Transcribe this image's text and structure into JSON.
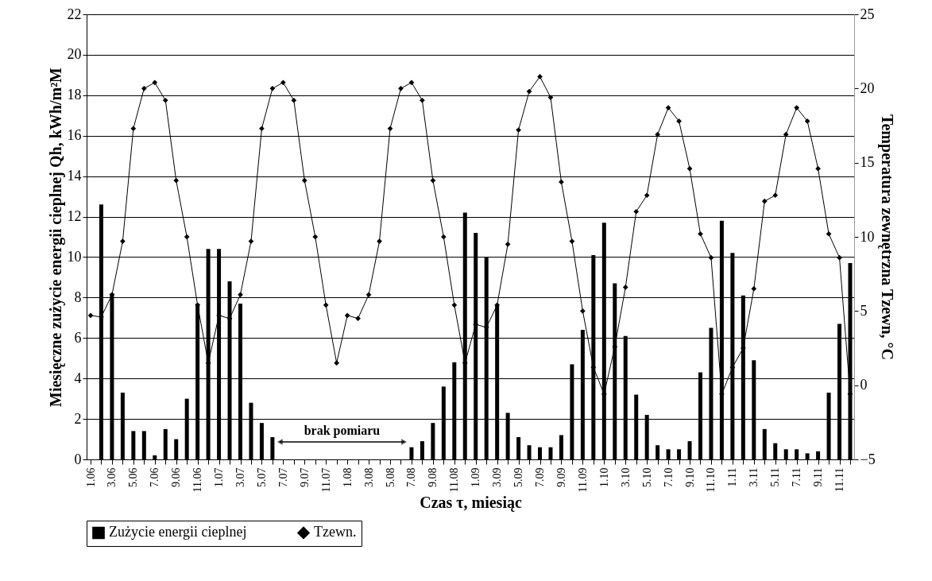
{
  "chart_data": {
    "type": "bar",
    "xlabel": "Czas τ, miesiąc",
    "ylabel": "Miesięczne zużycie energii cieplnej Qh, kWh/m²M",
    "y2label": "Temperatura zewnętrzna Tzewn, °C",
    "categories": [
      "1.06",
      null,
      "3.06",
      null,
      "5.06",
      null,
      "7.06",
      null,
      "9.06",
      null,
      "11.06",
      null,
      "1.07",
      null,
      "3.07",
      null,
      "5.07",
      null,
      "7.07",
      null,
      "9.07",
      null,
      "11.07",
      null,
      "1.08",
      null,
      "3.08",
      null,
      "5.08",
      null,
      "7.08",
      null,
      "9.08",
      null,
      "11.08",
      null,
      "1.09",
      null,
      "3.09",
      null,
      "5.09",
      null,
      "7.09",
      null,
      "9.09",
      null,
      "11.09",
      null,
      "1.10",
      null,
      "3.10",
      null,
      "5.10",
      null,
      "7.10",
      null,
      "9.10",
      null,
      "11.10",
      null,
      "1.11",
      null,
      "3.11",
      null,
      "5.11",
      null,
      "7.11",
      null,
      "9.11",
      null,
      "11.11",
      null
    ],
    "series": [
      {
        "name": "Zużycie energii cieplnej",
        "color": "#000000",
        "values": [
          null,
          12.6,
          8.2,
          3.3,
          1.4,
          1.4,
          0.2,
          1.5,
          1.0,
          3.0,
          7.7,
          10.4,
          10.4,
          8.8,
          7.7,
          2.8,
          1.8,
          1.1,
          null,
          null,
          null,
          null,
          null,
          null,
          null,
          null,
          null,
          null,
          null,
          null,
          0.6,
          0.9,
          1.8,
          3.6,
          4.8,
          12.2,
          11.2,
          10.0,
          7.6,
          2.3,
          1.1,
          0.7,
          0.6,
          0.6,
          1.2,
          4.7,
          6.4,
          10.1,
          11.7,
          8.7,
          6.1,
          3.2,
          2.2,
          0.7,
          0.5,
          0.5,
          0.9,
          4.3,
          6.5,
          11.8,
          10.2,
          8.1,
          4.9,
          1.5,
          0.8,
          0.5,
          0.5,
          0.3,
          0.4,
          3.3,
          6.7,
          9.7
        ]
      },
      {
        "name": "Tzewn.",
        "type": "line",
        "axis": "y2",
        "color": "#000000",
        "values": [
          4.7,
          4.6,
          6.1,
          9.7,
          17.3,
          20.0,
          20.4,
          19.2,
          13.8,
          10.0,
          5.4,
          1.5,
          4.7,
          4.5,
          6.1,
          9.7,
          17.3,
          20.0,
          20.4,
          19.2,
          13.8,
          10.0,
          5.4,
          1.5,
          4.7,
          4.5,
          6.1,
          9.7,
          17.3,
          20.0,
          20.4,
          19.2,
          13.8,
          10.0,
          5.4,
          1.5,
          4.1,
          3.9,
          5.4,
          9.5,
          17.2,
          19.8,
          20.8,
          19.4,
          13.7,
          9.7,
          5.0,
          1.2,
          -0.6,
          2.6,
          6.6,
          11.7,
          12.8,
          16.9,
          18.7,
          17.8,
          14.6,
          10.2,
          8.6,
          -0.6,
          1.2,
          2.5,
          6.5,
          12.4,
          12.8,
          16.9,
          18.7,
          17.8,
          14.6,
          10.2,
          8.6,
          -0.6
        ]
      }
    ],
    "ylim": [
      0,
      22
    ],
    "yticks": [
      0,
      2,
      4,
      6,
      8,
      10,
      12,
      14,
      16,
      18,
      20,
      22
    ],
    "y2lim": [
      -5,
      25
    ],
    "y2ticks": [
      -5,
      0,
      5,
      10,
      15,
      20,
      25
    ],
    "grid": "y",
    "legend": "bottom",
    "marker": "diamond",
    "line_style": "solid",
    "annotations": [
      "brak pomiaru"
    ]
  }
}
